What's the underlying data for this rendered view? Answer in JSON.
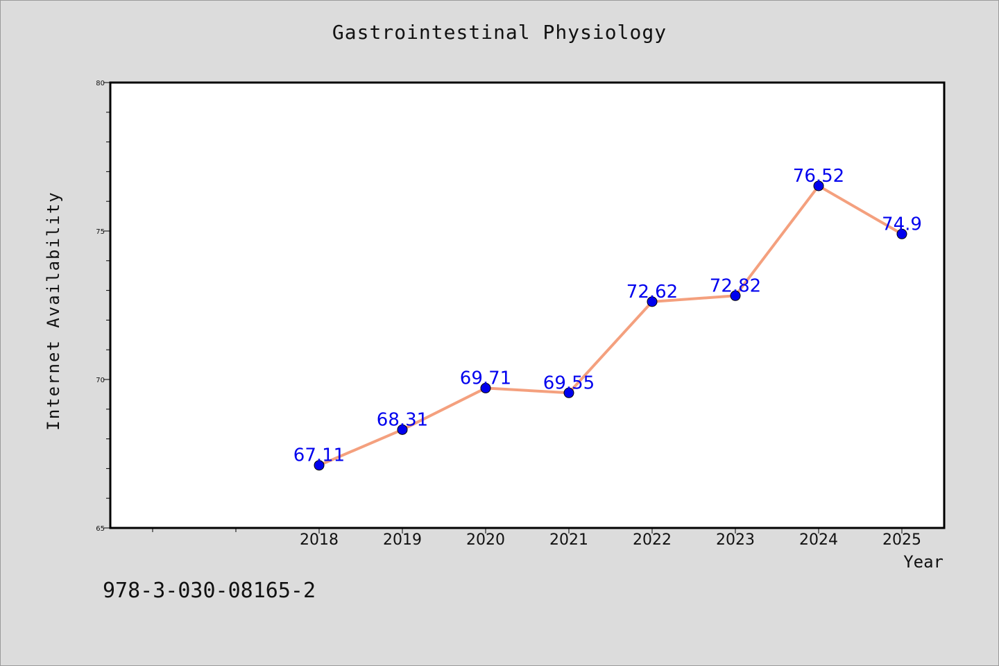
{
  "chart_data": {
    "type": "line",
    "title": "Gastrointestinal Physiology",
    "xlabel": "Year",
    "ylabel": "Internet Availability",
    "categories": [
      "2018",
      "2019",
      "2020",
      "2021",
      "2022",
      "2023",
      "2024",
      "2025"
    ],
    "series": [
      {
        "values": [
          67.11,
          68.31,
          69.71,
          69.55,
          72.62,
          72.82,
          76.52,
          74.9
        ],
        "data_labels": [
          "67.11",
          "68.31",
          "69.71",
          "69.55",
          "72.62",
          "72.82",
          "76.52",
          "74.9"
        ],
        "line_color": "#f4a07e",
        "marker_color": "#0000ee"
      }
    ],
    "ylim": [
      65,
      80
    ],
    "y_ticks": [
      "65",
      "70",
      "75",
      "80"
    ],
    "grid": false,
    "legend": "none",
    "background_color": "#dcdcdc",
    "plot_background": "#ffffff"
  },
  "footer": {
    "code": "978-3-030-08165-2"
  }
}
